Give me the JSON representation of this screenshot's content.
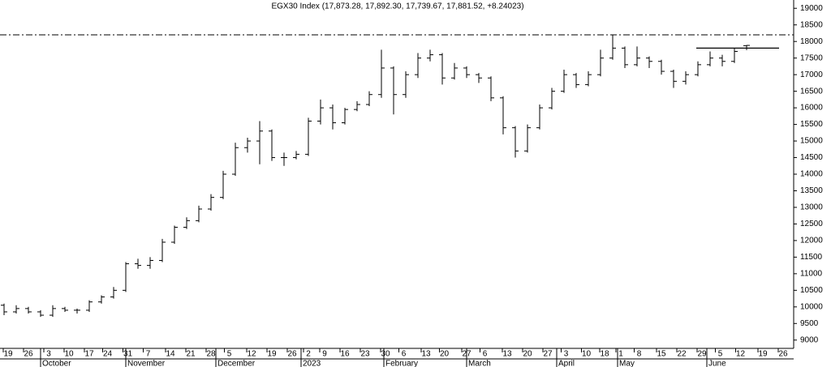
{
  "chart_data": {
    "type": "ohlc",
    "title": "EGX30 Index (17,873.28, 17,892.30, 17,739.67, 17,881.52, +8.24023)",
    "color": "#000000",
    "x": [
      1,
      4,
      7,
      10,
      13,
      16,
      19,
      22,
      25,
      28,
      31,
      34,
      37,
      40,
      43,
      46,
      49,
      52,
      55,
      58,
      61,
      64,
      67,
      70,
      73,
      76,
      79,
      82,
      85,
      88,
      91,
      94,
      97,
      100,
      103,
      106,
      109,
      112,
      115,
      118,
      121,
      124,
      127,
      130,
      133,
      136,
      139,
      142,
      145,
      148,
      151,
      154,
      157,
      160,
      163,
      166,
      169,
      172,
      175,
      178,
      181,
      184
    ],
    "open": [
      10050,
      9850,
      9950,
      9850,
      9750,
      9950,
      9900,
      9900,
      10150,
      10300,
      10500,
      11300,
      11250,
      11400,
      11950,
      12400,
      12600,
      12950,
      13300,
      14000,
      14800,
      15000,
      15300,
      14500,
      14500,
      14600,
      15600,
      16000,
      15550,
      15950,
      16100,
      16400,
      17200,
      16400,
      17000,
      17500,
      17600,
      16900,
      17200,
      17000,
      16900,
      16300,
      15400,
      14700,
      15400,
      16000,
      16500,
      17000,
      16700,
      17000,
      17500,
      17800,
      17300,
      17500,
      17400,
      17100,
      16800,
      17000,
      17300,
      17500,
      17400,
      17873.28
    ],
    "high": [
      10100,
      10050,
      10000,
      9900,
      10050,
      10000,
      9950,
      10200,
      10350,
      10600,
      11350,
      11450,
      11500,
      12050,
      12450,
      12700,
      13050,
      13400,
      14100,
      14950,
      15100,
      15600,
      15350,
      14650,
      14700,
      15700,
      16250,
      16100,
      16000,
      16200,
      16500,
      17750,
      17250,
      17100,
      17650,
      17750,
      17650,
      17350,
      17250,
      17050,
      16950,
      16350,
      15450,
      15500,
      16100,
      16600,
      17150,
      17050,
      17100,
      17750,
      18200,
      17850,
      17850,
      17550,
      17450,
      17150,
      17100,
      17400,
      17700,
      17600,
      17800,
      17892.3
    ],
    "low": [
      9750,
      9800,
      9800,
      9700,
      9700,
      9850,
      9800,
      9850,
      10100,
      10250,
      10450,
      11150,
      11150,
      11350,
      11900,
      12350,
      12550,
      12900,
      13250,
      13950,
      14650,
      14300,
      14400,
      14250,
      14450,
      14550,
      15500,
      15350,
      15500,
      15900,
      16050,
      16300,
      15800,
      16300,
      16900,
      17400,
      16700,
      16850,
      16900,
      16750,
      16200,
      15200,
      14500,
      14650,
      15350,
      15950,
      16450,
      16600,
      16650,
      16950,
      17450,
      17200,
      17250,
      17200,
      17000,
      16600,
      16700,
      16950,
      17250,
      17250,
      17350,
      17739.67
    ],
    "close": [
      9850,
      9950,
      9850,
      9750,
      9950,
      9900,
      9900,
      10150,
      10300,
      10500,
      11300,
      11250,
      11400,
      11950,
      12400,
      12600,
      12950,
      13300,
      14000,
      14800,
      15000,
      15300,
      14500,
      14500,
      14600,
      15600,
      16000,
      15550,
      15950,
      16100,
      16400,
      17200,
      16400,
      17000,
      17500,
      17600,
      16900,
      17200,
      17000,
      16900,
      16300,
      15400,
      14700,
      15400,
      16000,
      16500,
      17000,
      16700,
      17000,
      17500,
      17800,
      17300,
      17500,
      17400,
      17100,
      16800,
      17000,
      17300,
      17500,
      17400,
      17700,
      17881.52
    ],
    "xlim": [
      0,
      195.6
    ],
    "xticks": [
      {
        "value": 2,
        "label": "19"
      },
      {
        "value": 7,
        "label": "26"
      },
      {
        "value": 12,
        "label": "3"
      },
      {
        "value": 17,
        "label": "10"
      },
      {
        "value": 22,
        "label": "17"
      },
      {
        "value": 26.5,
        "label": "24"
      },
      {
        "value": 31.5,
        "label": "31"
      },
      {
        "value": 36.5,
        "label": "7"
      },
      {
        "value": 42,
        "label": "14"
      },
      {
        "value": 47,
        "label": "21"
      },
      {
        "value": 52,
        "label": "28"
      },
      {
        "value": 56.5,
        "label": "5"
      },
      {
        "value": 62,
        "label": "12"
      },
      {
        "value": 67,
        "label": "19"
      },
      {
        "value": 72,
        "label": "26"
      },
      {
        "value": 76,
        "label": "2"
      },
      {
        "value": 80,
        "label": "9"
      },
      {
        "value": 85,
        "label": "16"
      },
      {
        "value": 90,
        "label": "23"
      },
      {
        "value": 95,
        "label": "30"
      },
      {
        "value": 99.5,
        "label": "6"
      },
      {
        "value": 105,
        "label": "13"
      },
      {
        "value": 109.5,
        "label": "20"
      },
      {
        "value": 115,
        "label": "27"
      },
      {
        "value": 119.5,
        "label": "6"
      },
      {
        "value": 125,
        "label": "13"
      },
      {
        "value": 130,
        "label": "20"
      },
      {
        "value": 135,
        "label": "27"
      },
      {
        "value": 139.5,
        "label": "3"
      },
      {
        "value": 144.5,
        "label": "10"
      },
      {
        "value": 149,
        "label": "18"
      },
      {
        "value": 153,
        "label": "1"
      },
      {
        "value": 157.5,
        "label": "8"
      },
      {
        "value": 163,
        "label": "15"
      },
      {
        "value": 168,
        "label": "22"
      },
      {
        "value": 173,
        "label": "29"
      },
      {
        "value": 177.5,
        "label": "5"
      },
      {
        "value": 182.5,
        "label": "12"
      },
      {
        "value": 188,
        "label": "19"
      },
      {
        "value": 193,
        "label": "26"
      }
    ],
    "month_labels": [
      {
        "value": 10,
        "label": "October"
      },
      {
        "value": 31,
        "label": "November"
      },
      {
        "value": 53.2,
        "label": "December"
      },
      {
        "value": 74.2,
        "label": "2023"
      },
      {
        "value": 94.6,
        "label": "February"
      },
      {
        "value": 115,
        "label": "March"
      },
      {
        "value": 137.2,
        "label": "April"
      },
      {
        "value": 152.2,
        "label": "May"
      },
      {
        "value": 174.2,
        "label": "June"
      }
    ],
    "ylim": [
      8750,
      19250
    ],
    "yticks": [
      9000,
      9500,
      10000,
      10500,
      11000,
      11500,
      12000,
      12500,
      13000,
      13500,
      14000,
      14500,
      15000,
      15500,
      16000,
      16500,
      17000,
      17500,
      18000,
      18500,
      19000
    ],
    "reference_line": {
      "value": 18200,
      "style": "dashdot"
    },
    "support_line": {
      "value": 17800,
      "x": [
        171.6,
        192
      ]
    }
  }
}
